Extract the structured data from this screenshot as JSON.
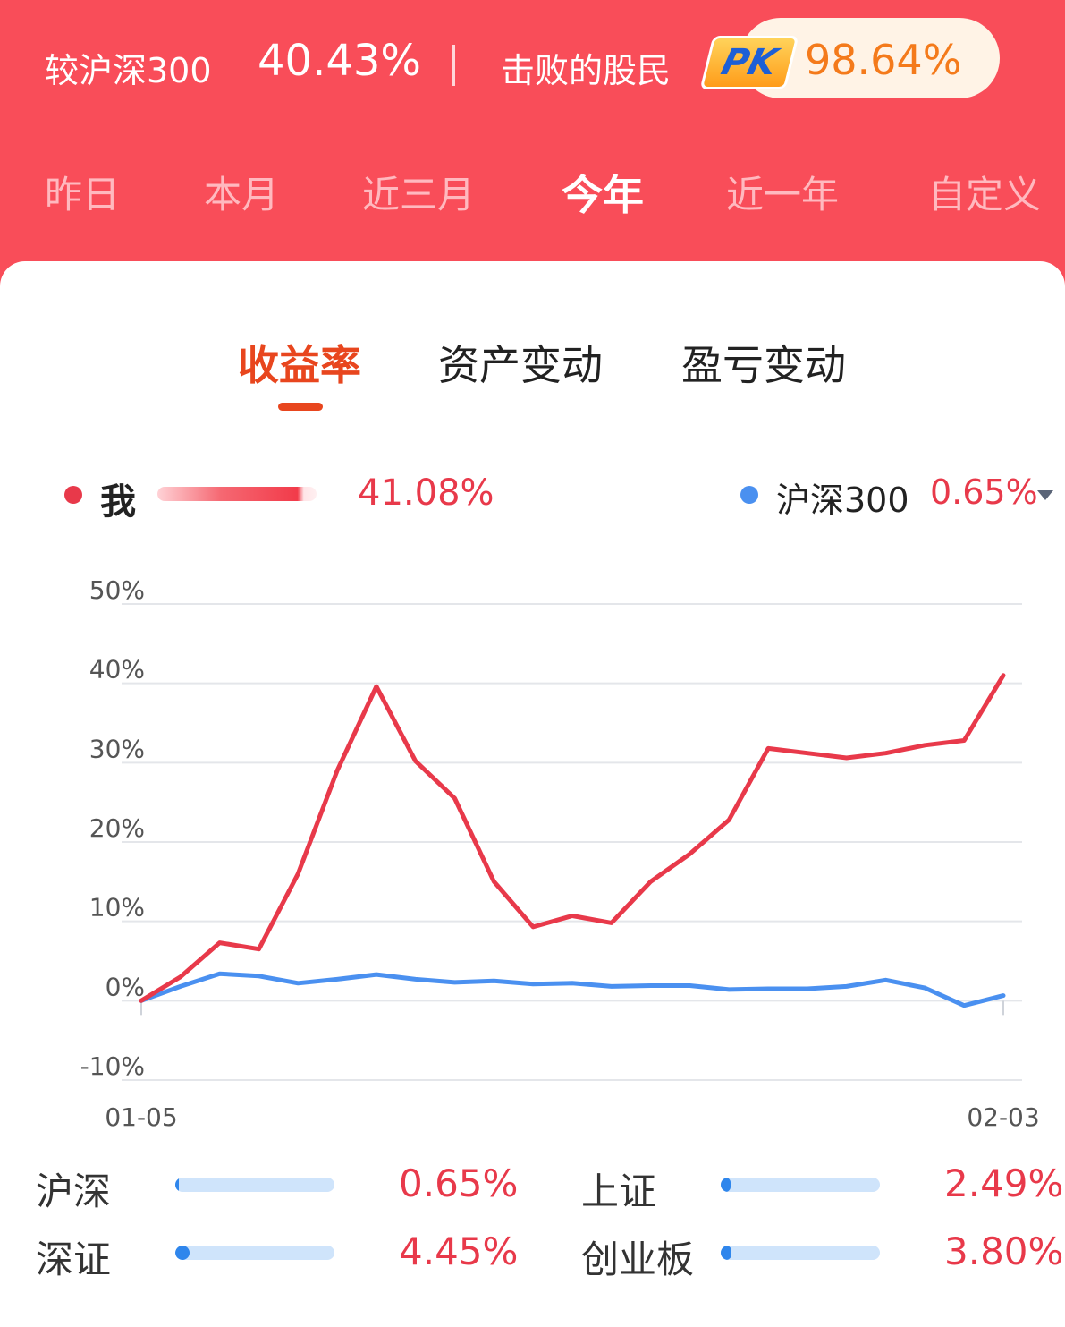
{
  "summary": {
    "compare_label": "较沪深300",
    "compare_value": "40.43%",
    "beat_label": "击败的股民",
    "pk_badge": "PK",
    "beat_value": "98.64%"
  },
  "period_tabs": [
    {
      "label": "昨日",
      "active": false
    },
    {
      "label": "本月",
      "active": false
    },
    {
      "label": "近三月",
      "active": false
    },
    {
      "label": "今年",
      "active": true
    },
    {
      "label": "近一年",
      "active": false
    },
    {
      "label": "自定义",
      "active": false
    }
  ],
  "metric_tabs": [
    {
      "label": "收益率",
      "active": true
    },
    {
      "label": "资产变动",
      "active": false
    },
    {
      "label": "盈亏变动",
      "active": false
    }
  ],
  "legend": {
    "me_label": "我",
    "me_value": "41.08%",
    "me_color": "#e8394a",
    "index_label": "沪深300",
    "index_value": "0.65%",
    "index_color": "#4a90f0"
  },
  "chart_data": {
    "type": "line",
    "y_ticks": [
      "50%",
      "40%",
      "30%",
      "20%",
      "10%",
      "0%",
      "-10%"
    ],
    "ylim": [
      -10,
      50
    ],
    "x_start_label": "01-05",
    "x_end_label": "02-03",
    "grid": true,
    "series": [
      {
        "name": "我",
        "color": "#e8394a",
        "values": [
          0,
          3,
          7.3,
          6.5,
          16,
          29,
          39.6,
          30.2,
          25.5,
          15,
          9.3,
          10.7,
          9.8,
          15,
          18.5,
          22.8,
          31.8,
          31.2,
          30.6,
          31.2,
          32.2,
          32.8,
          41
        ]
      },
      {
        "name": "沪深300",
        "color": "#4a90f0",
        "values": [
          0,
          1.8,
          3.4,
          3.1,
          2.2,
          2.7,
          3.3,
          2.7,
          2.3,
          2.5,
          2.1,
          2.2,
          1.8,
          1.9,
          1.9,
          1.4,
          1.5,
          1.5,
          1.8,
          2.6,
          1.6,
          -0.6,
          0.65
        ]
      }
    ]
  },
  "indices": [
    {
      "name": "沪深",
      "value": "0.65%",
      "fill": 0.02
    },
    {
      "name": "上证",
      "value": "2.49%",
      "fill": 0.06
    },
    {
      "name": "深证",
      "value": "4.45%",
      "fill": 0.09
    },
    {
      "name": "创业板",
      "value": "3.80%",
      "fill": 0.07
    }
  ]
}
